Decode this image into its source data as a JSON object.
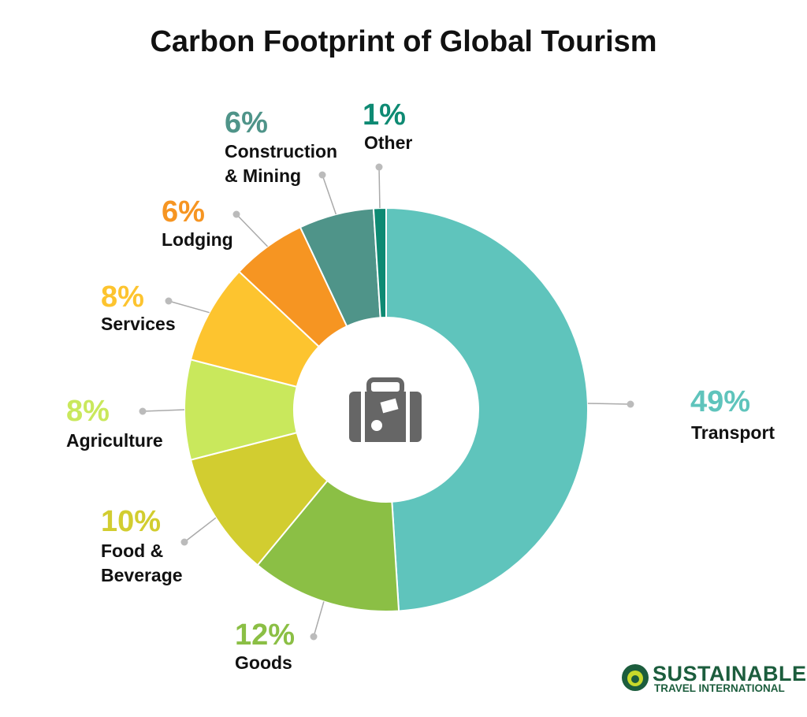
{
  "chart_data": {
    "type": "pie",
    "title": "Carbon Footprint of Global Tourism",
    "categories": [
      "Transport",
      "Goods",
      "Food & Beverage",
      "Agriculture",
      "Services",
      "Lodging",
      "Construction & Mining",
      "Other"
    ],
    "values": [
      49,
      12,
      10,
      8,
      8,
      6,
      6,
      1
    ],
    "value_labels": [
      "49%",
      "12%",
      "10%",
      "8%",
      "8%",
      "6%",
      "6%",
      "1%"
    ],
    "colors": [
      "#5fc4bc",
      "#8bbf45",
      "#d2cd30",
      "#c9e85c",
      "#fdc42f",
      "#f69522",
      "#4f9489",
      "#0e8a73"
    ],
    "donut": true
  },
  "logo": {
    "name": "SUSTAINABLE",
    "subtitle": "TRAVEL INTERNATIONAL"
  }
}
